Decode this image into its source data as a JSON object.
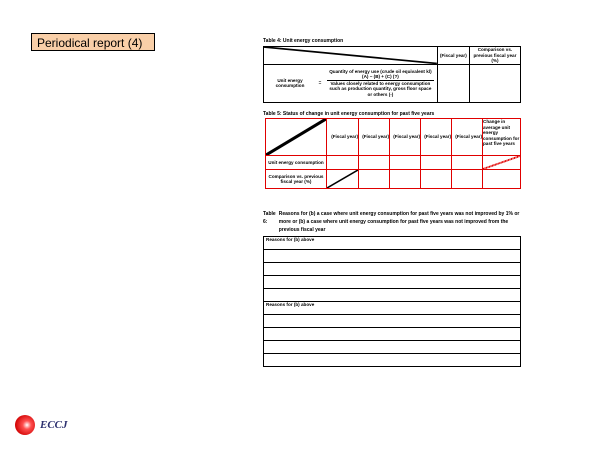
{
  "slide_title": "Periodical report (4)",
  "table4": {
    "caption": "Table 4: Unit energy consumption",
    "col_fiscal": "(Fiscal year)",
    "col_compare": "Comparison vs. previous fiscal year (%)",
    "row_label": "Unit energy consumption",
    "equals": "=",
    "numerator": "Quantity of energy use (crude oil equivalent kl)",
    "formula": "(A) − (B) + (C) (?)",
    "denominator": "Values closely related to energy consumption such as production quantity, gross floor space or others (-)"
  },
  "table5": {
    "caption": "Table 5: Status of change in unit energy consumption for past five years",
    "fiscal_headers": [
      "(Fiscal year)",
      "(Fiscal year)",
      "(Fiscal year)",
      "(Fiscal year)",
      "(Fiscal year)"
    ],
    "change_header": "Change in average unit energy consumption for past five years",
    "row1": "Unit energy consumption",
    "row2": "Comparison vs. previous fiscal year (%)"
  },
  "table6": {
    "caption_label": "Table 6:",
    "caption": "Reasons for (b) a case where unit energy consumption for past five years was not improved by 1% or more or (b) a case where unit energy consumption for past five years was not improved from the previous fiscal year",
    "section1": "Reasons for (b) above",
    "section2": "Reasons for (b) above"
  },
  "logo": {
    "text": "ECCJ",
    "color": "#e00000"
  },
  "colors": {
    "title_bg": "#f9cfa8",
    "table5_border": "#e00000"
  }
}
